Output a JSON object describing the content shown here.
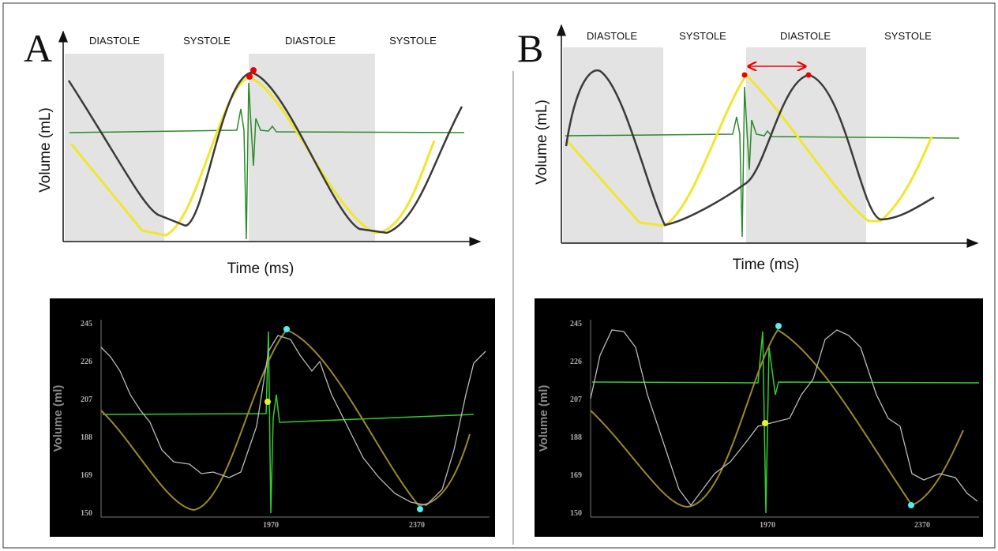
{
  "panels": [
    {
      "label": "A",
      "phases": [
        "DIASTOLE",
        "SYSTOLE",
        "DIASTOLE",
        "SYSTOLE"
      ],
      "y_axis_label": "Volume (mL)",
      "x_axis_label": "Time (ms)",
      "screen": {
        "y_axis_label": "Volume (ml)",
        "y_ticks": [
          "245",
          "226",
          "207",
          "188",
          "169",
          "150"
        ],
        "x_ticks": [
          "1970",
          "2370"
        ]
      }
    },
    {
      "label": "B",
      "phases": [
        "DIASTOLE",
        "SYSTOLE",
        "DIASTOLE",
        "SYSTOLE"
      ],
      "y_axis_label": "Volume (mL)",
      "x_axis_label": "Time (ms)",
      "screen": {
        "y_axis_label": "Volume (ml)",
        "y_ticks": [
          "245",
          "226",
          "207",
          "188",
          "169",
          "150"
        ],
        "x_ticks": [
          "1970",
          "2370"
        ]
      }
    }
  ]
}
